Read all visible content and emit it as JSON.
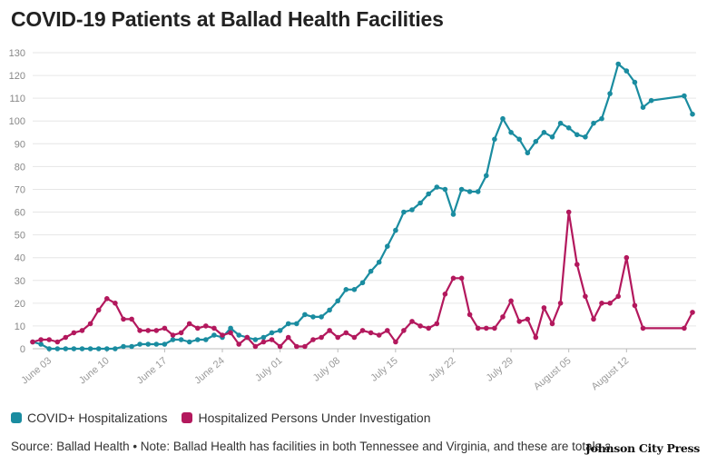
{
  "chart_data": {
    "type": "line",
    "title": "COVID-19 Patients at Ballad Health Facilities",
    "ylim": [
      0,
      130
    ],
    "yticks": [
      0,
      10,
      20,
      30,
      40,
      50,
      60,
      70,
      80,
      90,
      100,
      110,
      120,
      130
    ],
    "grid": true,
    "start_date": "2020-06-01",
    "xtick_labels": [
      "June 03",
      "June 10",
      "June 17",
      "June 24",
      "July 01",
      "July 08",
      "July 15",
      "July 22",
      "July 29",
      "August 05",
      "August 12"
    ],
    "xtick_days": [
      2,
      9,
      16,
      23,
      30,
      37,
      44,
      51,
      58,
      65,
      72
    ],
    "series": [
      {
        "name": "COVID+ Hospitalizations",
        "color": "#1a8ca0",
        "points": [
          [
            0,
            3
          ],
          [
            1,
            2
          ],
          [
            2,
            0
          ],
          [
            3,
            0
          ],
          [
            4,
            0
          ],
          [
            5,
            0
          ],
          [
            6,
            0
          ],
          [
            7,
            0
          ],
          [
            8,
            0
          ],
          [
            9,
            0
          ],
          [
            10,
            0
          ],
          [
            11,
            1
          ],
          [
            12,
            1
          ],
          [
            13,
            2
          ],
          [
            14,
            2
          ],
          [
            15,
            2
          ],
          [
            16,
            2
          ],
          [
            17,
            4
          ],
          [
            18,
            4
          ],
          [
            19,
            3
          ],
          [
            20,
            4
          ],
          [
            21,
            4
          ],
          [
            22,
            6
          ],
          [
            23,
            5
          ],
          [
            24,
            9
          ],
          [
            25,
            6
          ],
          [
            26,
            5
          ],
          [
            27,
            4
          ],
          [
            28,
            5
          ],
          [
            29,
            7
          ],
          [
            30,
            8
          ],
          [
            31,
            11
          ],
          [
            32,
            11
          ],
          [
            33,
            15
          ],
          [
            34,
            14
          ],
          [
            35,
            14
          ],
          [
            36,
            17
          ],
          [
            37,
            21
          ],
          [
            38,
            26
          ],
          [
            39,
            26
          ],
          [
            40,
            29
          ],
          [
            41,
            34
          ],
          [
            42,
            38
          ],
          [
            43,
            45
          ],
          [
            44,
            52
          ],
          [
            45,
            60
          ],
          [
            46,
            61
          ],
          [
            47,
            64
          ],
          [
            48,
            68
          ],
          [
            49,
            71
          ],
          [
            50,
            70
          ],
          [
            51,
            59
          ],
          [
            52,
            70
          ],
          [
            53,
            69
          ],
          [
            54,
            69
          ],
          [
            55,
            76
          ],
          [
            56,
            92
          ],
          [
            57,
            101
          ],
          [
            58,
            95
          ],
          [
            59,
            92
          ],
          [
            60,
            86
          ],
          [
            61,
            91
          ],
          [
            62,
            95
          ],
          [
            63,
            93
          ],
          [
            64,
            99
          ],
          [
            65,
            97
          ],
          [
            66,
            94
          ],
          [
            67,
            93
          ],
          [
            68,
            99
          ],
          [
            69,
            101
          ],
          [
            70,
            112
          ],
          [
            71,
            125
          ],
          [
            72,
            122
          ],
          [
            73,
            117
          ],
          [
            74,
            106
          ],
          [
            75,
            109
          ],
          [
            79,
            111
          ],
          [
            80,
            103
          ]
        ]
      },
      {
        "name": "Hospitalized Persons Under Investigation",
        "color": "#b3185d",
        "points": [
          [
            0,
            3
          ],
          [
            1,
            4
          ],
          [
            2,
            4
          ],
          [
            3,
            3
          ],
          [
            4,
            5
          ],
          [
            5,
            7
          ],
          [
            6,
            8
          ],
          [
            7,
            11
          ],
          [
            8,
            17
          ],
          [
            9,
            22
          ],
          [
            10,
            20
          ],
          [
            11,
            13
          ],
          [
            12,
            13
          ],
          [
            13,
            8
          ],
          [
            14,
            8
          ],
          [
            15,
            8
          ],
          [
            16,
            9
          ],
          [
            17,
            6
          ],
          [
            18,
            7
          ],
          [
            19,
            11
          ],
          [
            20,
            9
          ],
          [
            21,
            10
          ],
          [
            22,
            9
          ],
          [
            23,
            6
          ],
          [
            24,
            7
          ],
          [
            25,
            2
          ],
          [
            26,
            5
          ],
          [
            27,
            1
          ],
          [
            28,
            3
          ],
          [
            29,
            4
          ],
          [
            30,
            1
          ],
          [
            31,
            5
          ],
          [
            32,
            1
          ],
          [
            33,
            1
          ],
          [
            34,
            4
          ],
          [
            35,
            5
          ],
          [
            36,
            8
          ],
          [
            37,
            5
          ],
          [
            38,
            7
          ],
          [
            39,
            5
          ],
          [
            40,
            8
          ],
          [
            41,
            7
          ],
          [
            42,
            6
          ],
          [
            43,
            8
          ],
          [
            44,
            3
          ],
          [
            45,
            8
          ],
          [
            46,
            12
          ],
          [
            47,
            10
          ],
          [
            48,
            9
          ],
          [
            49,
            11
          ],
          [
            50,
            24
          ],
          [
            51,
            31
          ],
          [
            52,
            31
          ],
          [
            53,
            15
          ],
          [
            54,
            9
          ],
          [
            55,
            9
          ],
          [
            56,
            9
          ],
          [
            57,
            14
          ],
          [
            58,
            21
          ],
          [
            59,
            12
          ],
          [
            60,
            13
          ],
          [
            61,
            5
          ],
          [
            62,
            18
          ],
          [
            63,
            11
          ],
          [
            64,
            20
          ],
          [
            65,
            60
          ],
          [
            66,
            37
          ],
          [
            67,
            23
          ],
          [
            68,
            13
          ],
          [
            69,
            20
          ],
          [
            70,
            20
          ],
          [
            71,
            23
          ],
          [
            72,
            40
          ],
          [
            73,
            19
          ],
          [
            74,
            9
          ],
          [
            79,
            9
          ],
          [
            80,
            16
          ]
        ]
      }
    ]
  },
  "legend": {
    "series_1": "COVID+ Hospitalizations",
    "series_2": "Hospitalized Persons Under Investigation"
  },
  "footer": {
    "source": "Source: Ballad Health • Note: Ballad Health has facilities in both Tennessee and Virginia, and these are totals across",
    "brand": "Johnson City Press"
  }
}
